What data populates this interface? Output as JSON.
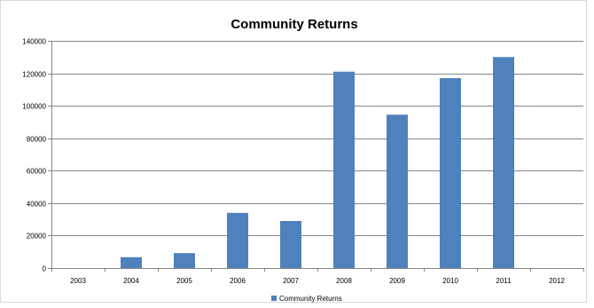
{
  "chart_data": {
    "type": "bar",
    "title": "Community Returns",
    "xlabel": "",
    "ylabel": "",
    "categories": [
      "2003",
      "2004",
      "2005",
      "2006",
      "2007",
      "2008",
      "2009",
      "2010",
      "2011",
      "2012"
    ],
    "series": [
      {
        "name": "Community Returns",
        "values": [
          0,
          6700,
          9200,
          34000,
          29000,
          121000,
          94500,
          117000,
          130000,
          0
        ],
        "color": "#4f81bd"
      }
    ],
    "ylim": [
      0,
      140000
    ],
    "yticks": [
      "0",
      "20000",
      "40000",
      "60000",
      "80000",
      "100000",
      "120000",
      "140000"
    ],
    "grid": true,
    "legend": "bottom",
    "colors": {
      "bar": "#4f81bd",
      "grid": "#868686",
      "axis": "#868686",
      "text": "#000000"
    }
  }
}
